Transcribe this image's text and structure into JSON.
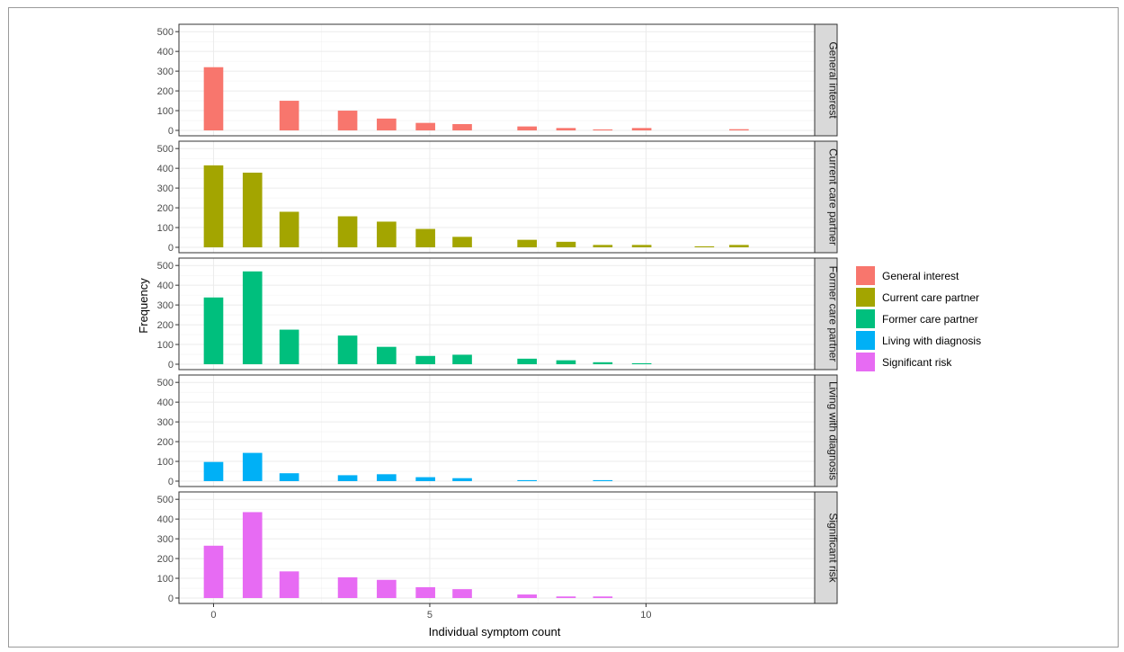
{
  "chart_data": {
    "type": "bar",
    "xlabel": "Individual symptom count",
    "ylabel": "Frequency",
    "xlim": [
      -0.8,
      13.9
    ],
    "ylim": [
      0,
      510
    ],
    "xticks": [
      0,
      5,
      10
    ],
    "yticks": [
      0,
      100,
      200,
      300,
      400,
      500
    ],
    "grid": true,
    "legend_position": "right",
    "bar_width": 0.45,
    "series": [
      {
        "name": "General interest",
        "color": "#F8766D",
        "x": [
          0,
          1.75,
          3.1,
          4,
          4.9,
          5.75,
          7.25,
          8.15,
          9,
          9.9,
          12.15
        ],
        "values": [
          320,
          150,
          100,
          60,
          38,
          32,
          20,
          12,
          5,
          12,
          6
        ]
      },
      {
        "name": "Current care partner",
        "color": "#A3A500",
        "x": [
          0,
          0.9,
          1.75,
          3.1,
          4,
          4.9,
          5.75,
          7.25,
          8.15,
          9,
          9.9,
          11.35,
          12.15
        ],
        "values": [
          415,
          378,
          180,
          157,
          130,
          93,
          53,
          38,
          28,
          12,
          12,
          5,
          12
        ]
      },
      {
        "name": "Former care partner",
        "color": "#00BF7D",
        "x": [
          0,
          0.9,
          1.75,
          3.1,
          4,
          4.9,
          5.75,
          7.25,
          8.15,
          9,
          9.9
        ],
        "values": [
          338,
          470,
          175,
          145,
          88,
          42,
          48,
          28,
          20,
          10,
          5
        ]
      },
      {
        "name": "Living with diagnosis",
        "color": "#00B0F6",
        "x": [
          0,
          0.9,
          1.75,
          3.1,
          4,
          4.9,
          5.75,
          7.25,
          9
        ],
        "values": [
          97,
          143,
          40,
          30,
          35,
          20,
          15,
          5,
          5
        ]
      },
      {
        "name": "Significant risk",
        "color": "#E76BF3",
        "x": [
          0,
          0.9,
          1.75,
          3.1,
          4,
          4.9,
          5.75,
          7.25,
          8.15,
          9
        ],
        "values": [
          265,
          435,
          135,
          105,
          92,
          55,
          45,
          18,
          8,
          8
        ]
      }
    ]
  }
}
